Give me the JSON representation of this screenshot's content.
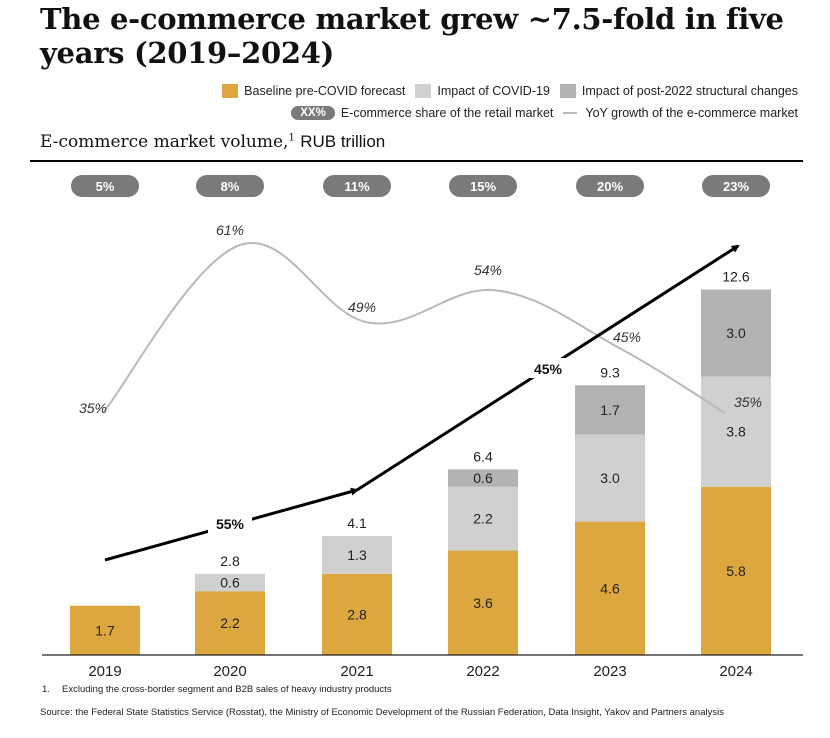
{
  "title": "The e-commerce market grew ~7.5-fold in five years (2019–2024)",
  "subtitle": {
    "main": "E-commerce market volume,",
    "footnote_marker": "1",
    "unit": "RUB trillion"
  },
  "legend": {
    "baseline": "Baseline pre-COVID forecast",
    "covid": "Impact of COVID-19",
    "structural": "Impact of post-2022 structural changes",
    "share_sample": "XX%",
    "share": "E-commerce share of the retail market",
    "yoy": "YoY growth of the e-commerce market"
  },
  "colors": {
    "baseline": "#DBA73E",
    "covid": "#D0D0D0",
    "structural": "#B2B2B2",
    "pill": "#7A7A7A",
    "yoy_line": "#B9B9B9",
    "arrow": "#000000"
  },
  "chart_data": {
    "type": "bar",
    "stacked": true,
    "title": "E-commerce market volume, RUB trillion",
    "xlabel": "",
    "ylabel": "RUB trillion",
    "ylim": [
      0,
      12.6
    ],
    "grid": false,
    "legend_position": "top-right",
    "categories": [
      "2019",
      "2020",
      "2021",
      "2022",
      "2023",
      "2024"
    ],
    "series": [
      {
        "name": "Baseline pre-COVID forecast",
        "values": [
          1.7,
          2.2,
          2.8,
          3.6,
          4.6,
          5.8
        ]
      },
      {
        "name": "Impact of COVID-19",
        "values": [
          null,
          0.6,
          1.3,
          2.2,
          3.0,
          3.8
        ]
      },
      {
        "name": "Impact of post-2022 structural changes",
        "values": [
          null,
          null,
          null,
          0.6,
          1.7,
          3.0
        ]
      }
    ],
    "totals": [
      "",
      "2.8",
      "4.1",
      "6.4",
      "9.3",
      "12.6"
    ],
    "retail_share": [
      "5%",
      "8%",
      "11%",
      "15%",
      "20%",
      "23%"
    ],
    "yoy_growth": {
      "name": "YoY growth of the e-commerce market",
      "values": [
        35,
        61,
        49,
        54,
        45,
        35
      ],
      "labels": [
        "35%",
        "61%",
        "49%",
        "54%",
        "45%",
        "35%"
      ]
    },
    "cagr_arrows": [
      {
        "from": "2019",
        "to": "2021",
        "label": "55%"
      },
      {
        "from": "2021",
        "to": "2024",
        "label": "45%"
      }
    ]
  },
  "footnote": "1.  Excluding the cross-border segment and B2B sales of heavy industry products",
  "source": "Source: the Federal State Statistics Service (Rosstat), the Ministry of Economic Development of the Russian Federation, Data  Insight, Yakov and Partners analysis"
}
